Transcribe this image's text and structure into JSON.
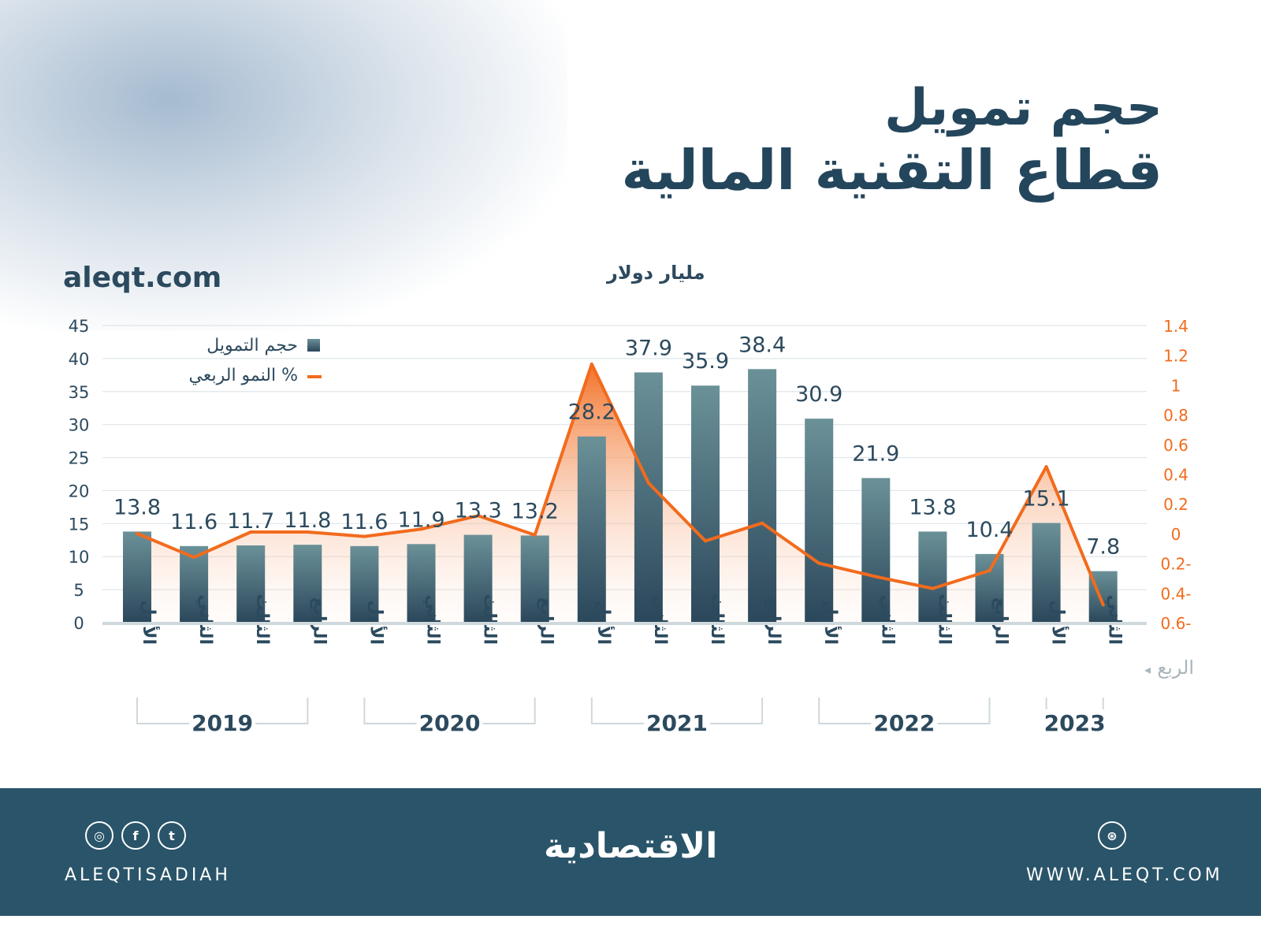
{
  "title_line1": "حجم تمويل",
  "title_line2": "قطاع التقنية المالية",
  "website_top": "aleqt.com",
  "chart_data": {
    "type": "bar+line",
    "unit": "مليار دولار",
    "xlabel": "الربع",
    "categories": [
      "الأول",
      "الثاني",
      "الثالث",
      "الرابع",
      "الأول",
      "الثاني",
      "الثالث",
      "الرابع",
      "الأول",
      "الثاني",
      "الثالث",
      "الرابع",
      "الأول",
      "الثاني",
      "الثالث",
      "الرابع",
      "الأول",
      "الثاني"
    ],
    "years": [
      {
        "label": "2019",
        "from": 0,
        "to": 3
      },
      {
        "label": "2020",
        "from": 4,
        "to": 7
      },
      {
        "label": "2021",
        "from": 8,
        "to": 11
      },
      {
        "label": "2022",
        "from": 12,
        "to": 15
      },
      {
        "label": "2023",
        "from": 16,
        "to": 17
      }
    ],
    "series": [
      {
        "name": "حجم التمويل",
        "type": "bar",
        "axis": "left",
        "color": "#3f6577",
        "values": [
          13.8,
          11.6,
          11.7,
          11.8,
          11.6,
          11.9,
          13.3,
          13.2,
          28.2,
          37.9,
          35.9,
          38.4,
          30.9,
          21.9,
          13.8,
          10.4,
          15.1,
          7.8
        ],
        "labels": [
          "13.8",
          "11.6",
          "11.7",
          "11.8",
          "11.6",
          "11.9",
          "13.3",
          "13.2",
          "28.2",
          "37.9",
          "35.9",
          "38.4",
          "30.9",
          "21.9",
          "13.8",
          "10.4",
          "15.1",
          "7.8"
        ]
      },
      {
        "name": "النمو الربعي %",
        "type": "line",
        "axis": "right",
        "color": "#f26b1d",
        "values": [
          0,
          -0.16,
          0.01,
          0.01,
          -0.02,
          0.03,
          0.12,
          -0.01,
          1.14,
          0.34,
          -0.05,
          0.07,
          -0.2,
          -0.29,
          -0.37,
          -0.25,
          0.45,
          -0.48
        ]
      }
    ],
    "left_axis": {
      "ylim": [
        0,
        45
      ],
      "ticks": [
        "0",
        "5",
        "10",
        "15",
        "20",
        "25",
        "30",
        "35",
        "40",
        "45"
      ]
    },
    "right_axis": {
      "ylim": [
        -0.6,
        1.4
      ],
      "ticks": [
        "0.6-",
        "0.4-",
        "0.2-",
        "0",
        "0.2",
        "0.4",
        "0.6",
        "0.8",
        "1",
        "1.2",
        "1.4"
      ]
    },
    "grid": true,
    "legend_position": "top-left"
  },
  "footer": {
    "handle": "ALEQTISADIAH",
    "logo": "الاقتصادية",
    "website": "WWW.ALEQT.COM",
    "icons": [
      "instagram-icon",
      "facebook-icon",
      "twitter-icon",
      "dribbble-icon"
    ]
  }
}
